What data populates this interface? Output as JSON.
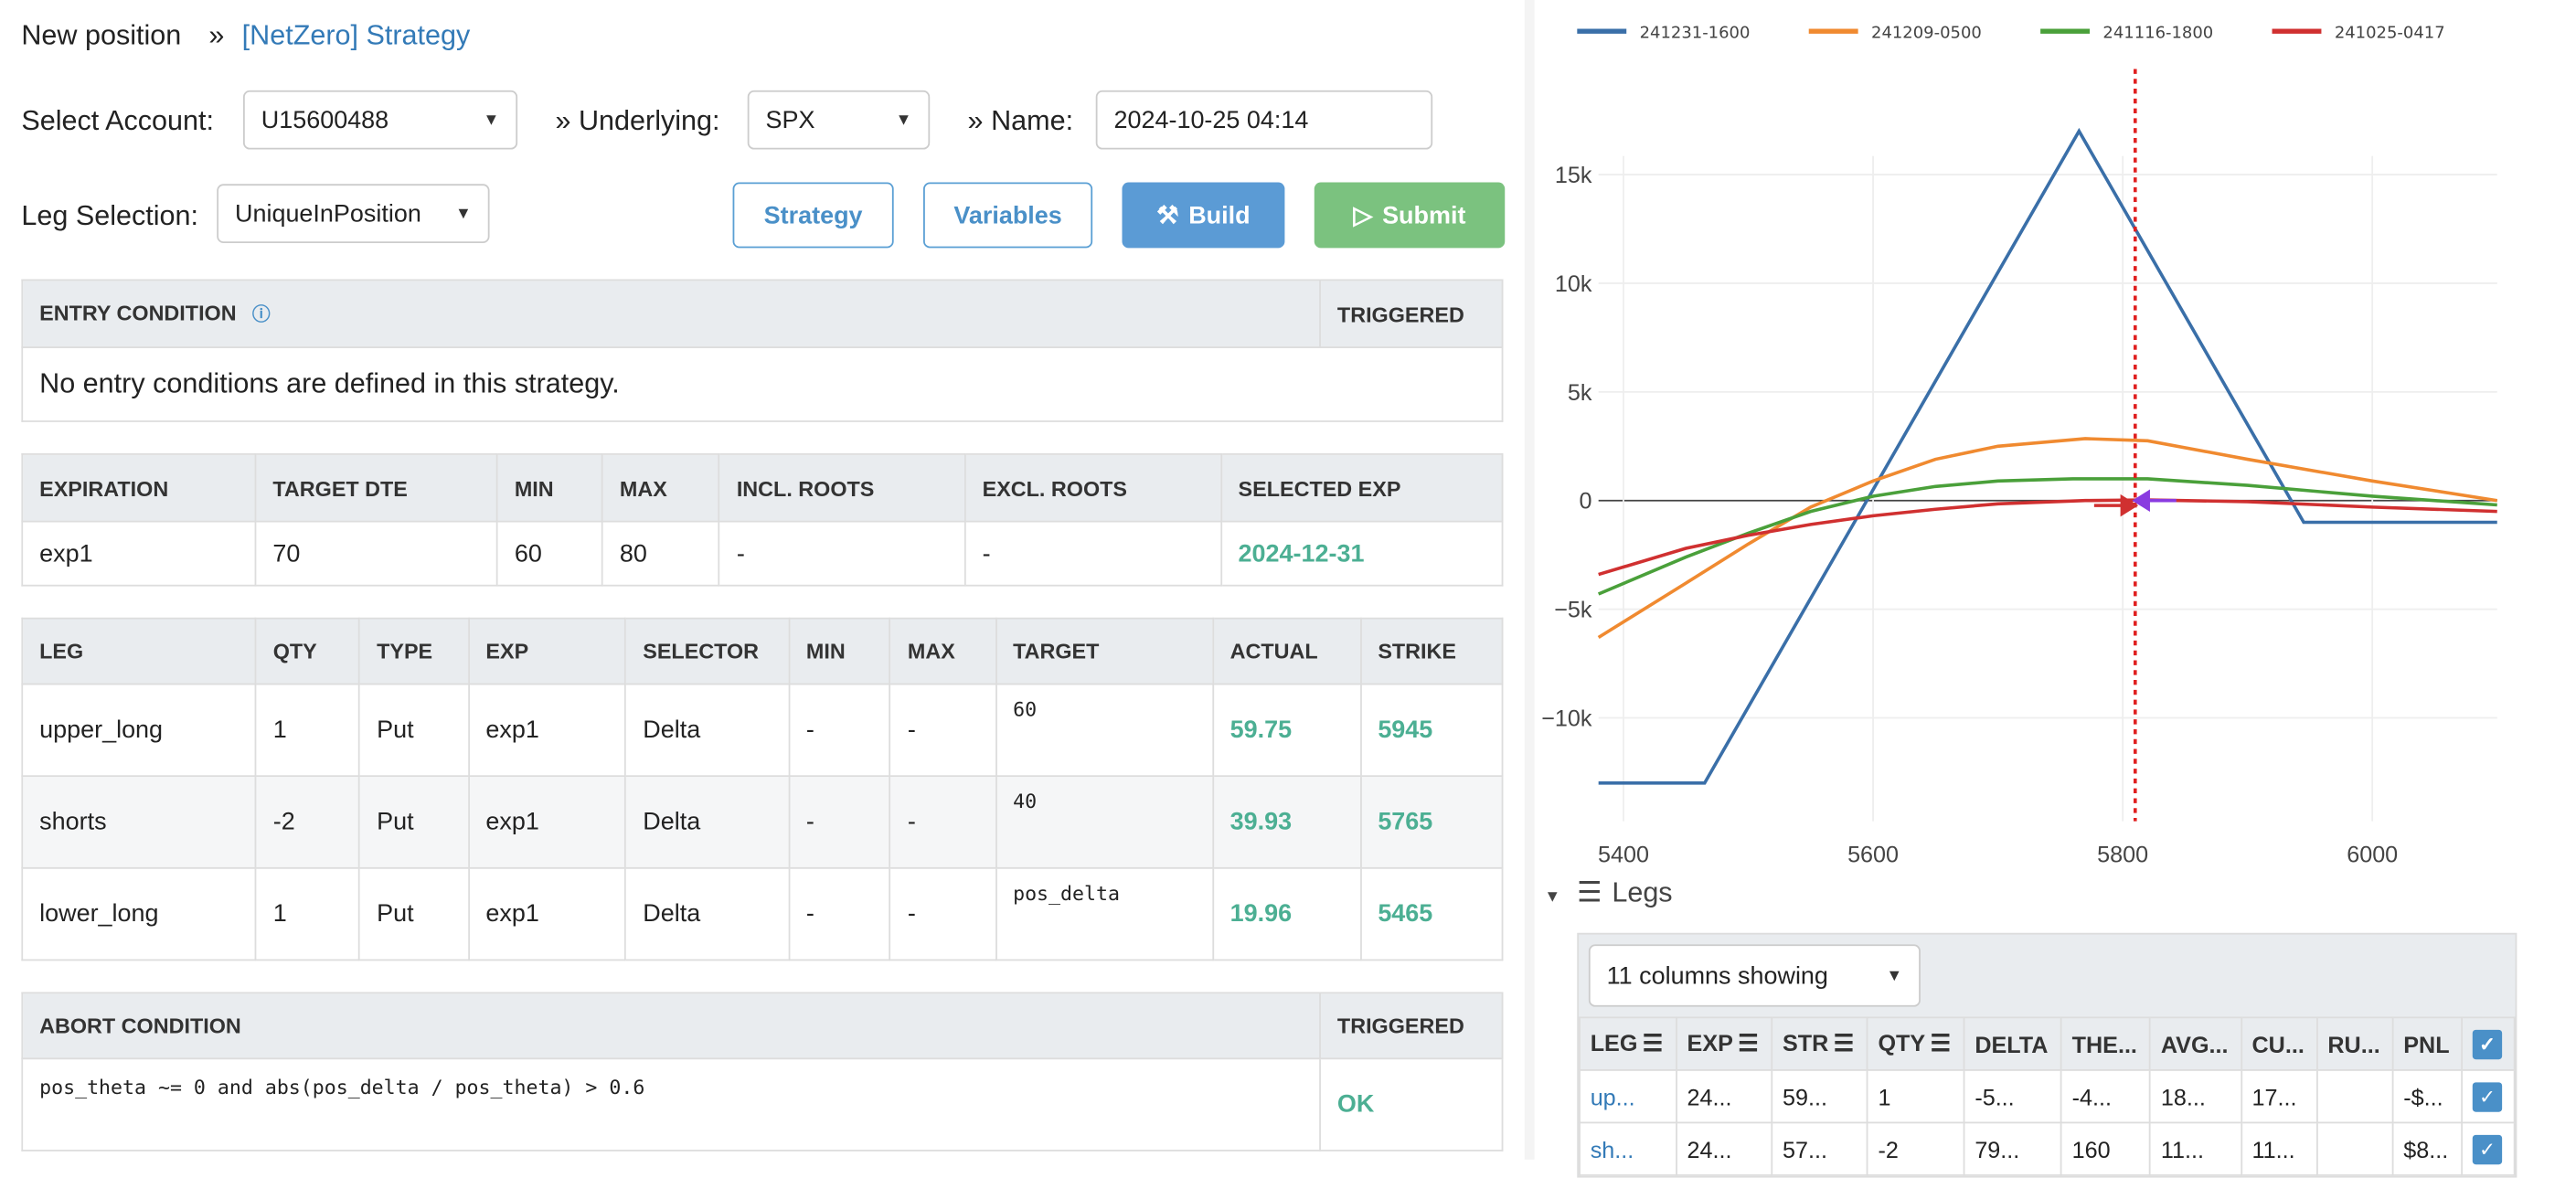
{
  "header": {
    "title": "New position",
    "sep": "»",
    "strategy_link": "[NetZero] Strategy"
  },
  "form": {
    "account_label": "Select Account:",
    "account_value": "U15600488",
    "sep": "»",
    "underlying_label": "Underlying:",
    "underlying_value": "SPX",
    "name_label": "Name:",
    "name_value": "2024-10-25 04:14",
    "leg_selection_label": "Leg Selection:",
    "leg_selection_value": "UniqueInPosition"
  },
  "buttons": {
    "strategy": "Strategy",
    "variables": "Variables",
    "build": "Build",
    "submit": "Submit"
  },
  "entry": {
    "header": "ENTRY CONDITION",
    "triggered": "TRIGGERED",
    "message": "No entry conditions are defined in this strategy."
  },
  "expiration": {
    "headers": [
      "EXPIRATION",
      "TARGET DTE",
      "MIN",
      "MAX",
      "INCL. ROOTS",
      "EXCL. ROOTS",
      "SELECTED EXP"
    ],
    "rows": [
      [
        "exp1",
        "70",
        "60",
        "80",
        "-",
        "-",
        "2024-12-31"
      ]
    ]
  },
  "legs": {
    "headers": [
      "LEG",
      "QTY",
      "TYPE",
      "EXP",
      "SELECTOR",
      "MIN",
      "MAX",
      "TARGET",
      "ACTUAL",
      "STRIKE"
    ],
    "rows": [
      [
        "upper_long",
        "1",
        "Put",
        "exp1",
        "Delta",
        "-",
        "-",
        "60",
        "59.75",
        "5945"
      ],
      [
        "shorts",
        "-2",
        "Put",
        "exp1",
        "Delta",
        "-",
        "-",
        "40",
        "39.93",
        "5765"
      ],
      [
        "lower_long",
        "1",
        "Put",
        "exp1",
        "Delta",
        "-",
        "-",
        "pos_delta",
        "19.96",
        "5465"
      ]
    ]
  },
  "abort": {
    "header": "ABORT CONDITION",
    "triggered": "TRIGGERED",
    "condition": "pos_theta ~= 0 and abs(pos_delta / pos_theta) > 0.6",
    "status": "OK"
  },
  "legs_panel": {
    "title": "Legs",
    "columns_select": "11 columns showing",
    "headers": [
      "LEG",
      "EXP",
      "STR",
      "QTY",
      "DELTA",
      "THE...",
      "AVG...",
      "CU...",
      "RU...",
      "PNL"
    ],
    "rows": [
      [
        "up...",
        "24...",
        "59...",
        "1",
        "-5...",
        "-4...",
        "18...",
        "17...",
        "",
        "-$..."
      ],
      [
        "sh...",
        "24...",
        "57...",
        "-2",
        "79...",
        "160",
        "11...",
        "11...",
        "",
        "$8..."
      ]
    ]
  },
  "chart_data": {
    "type": "line",
    "legend_position": "top",
    "grid": true,
    "xlim": [
      5380,
      6100
    ],
    "ylim": [
      -14000,
      18500
    ],
    "x_ticks": [
      "5400",
      "5600",
      "5800",
      "6000"
    ],
    "y_ticks": [
      "15k",
      "10k",
      "5k",
      "0",
      "−5k",
      "−10k"
    ],
    "y_tick_values": [
      15000,
      10000,
      5000,
      0,
      -5000,
      -10000
    ],
    "x_tick_values": [
      5400,
      5600,
      5800,
      6000
    ],
    "marker_line_x": 5810,
    "marker_color": "#e02020",
    "series": [
      {
        "name": "241231-1600",
        "color": "#3a6fa8",
        "x": [
          5380,
          5465,
          5765,
          5945,
          6100
        ],
        "y": [
          -13000,
          -13000,
          17000,
          -1000,
          -1000
        ]
      },
      {
        "name": "241209-0500",
        "color": "#f08a30",
        "x": [
          5380,
          5450,
          5500,
          5550,
          5600,
          5650,
          5700,
          5770,
          5820,
          5900,
          6000,
          6100
        ],
        "y": [
          -6300,
          -3800,
          -2000,
          -300,
          900,
          1900,
          2500,
          2850,
          2750,
          1900,
          900,
          0
        ]
      },
      {
        "name": "241116-1800",
        "color": "#4aa03a",
        "x": [
          5380,
          5450,
          5500,
          5550,
          5600,
          5650,
          5700,
          5760,
          5820,
          5900,
          6000,
          6100
        ],
        "y": [
          -4300,
          -2600,
          -1500,
          -500,
          200,
          650,
          900,
          1000,
          1000,
          700,
          200,
          -200
        ]
      },
      {
        "name": "241025-0417",
        "color": "#d03030",
        "x": [
          5380,
          5450,
          5500,
          5550,
          5600,
          5650,
          5700,
          5770,
          5820,
          5900,
          6000,
          6100
        ],
        "y": [
          -3400,
          -2200,
          -1600,
          -1100,
          -700,
          -400,
          -150,
          0,
          30,
          -50,
          -300,
          -500
        ]
      }
    ]
  }
}
